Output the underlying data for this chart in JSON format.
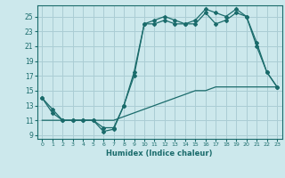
{
  "xlabel": "Humidex (Indice chaleur)",
  "background_color": "#cce8ec",
  "grid_color": "#aacdd4",
  "line_color": "#1a6b6b",
  "xlim": [
    -0.5,
    23.5
  ],
  "ylim": [
    8.5,
    26.5
  ],
  "xticks": [
    0,
    1,
    2,
    3,
    4,
    5,
    6,
    7,
    8,
    9,
    10,
    11,
    12,
    13,
    14,
    15,
    16,
    17,
    18,
    19,
    20,
    21,
    22,
    23
  ],
  "yticks": [
    9,
    11,
    13,
    15,
    17,
    19,
    21,
    23,
    25
  ],
  "line1_x": [
    0,
    1,
    2,
    3,
    4,
    5,
    6,
    7,
    8,
    9,
    10,
    11,
    12,
    13,
    14,
    15,
    16,
    17,
    18,
    19,
    20,
    21,
    22,
    23
  ],
  "line1_y": [
    14,
    12,
    11,
    11,
    11,
    11,
    9.5,
    9.8,
    13,
    17.5,
    24,
    24.5,
    25,
    24.5,
    24,
    24.5,
    26,
    25.5,
    25,
    26,
    25,
    21.5,
    17.5,
    15.5
  ],
  "line2_x": [
    0,
    1,
    2,
    3,
    4,
    5,
    6,
    7,
    8,
    9,
    10,
    11,
    12,
    13,
    14,
    15,
    16,
    17,
    18,
    19,
    20,
    21,
    22,
    23
  ],
  "line2_y": [
    14,
    12.5,
    11,
    11,
    11,
    11,
    10,
    10,
    13,
    17,
    24,
    24,
    24.5,
    24,
    24,
    24,
    25.5,
    24,
    24.5,
    25.5,
    25,
    21,
    17.5,
    15.5
  ],
  "line3_x": [
    0,
    1,
    2,
    3,
    4,
    5,
    6,
    7,
    8,
    9,
    10,
    11,
    12,
    13,
    14,
    15,
    16,
    17,
    18,
    19,
    20,
    21,
    22,
    23
  ],
  "line3_y": [
    11,
    11,
    11,
    11,
    11,
    11,
    11,
    11,
    11.5,
    12,
    12.5,
    13,
    13.5,
    14,
    14.5,
    15,
    15,
    15.5,
    15.5,
    15.5,
    15.5,
    15.5,
    15.5,
    15.5
  ]
}
